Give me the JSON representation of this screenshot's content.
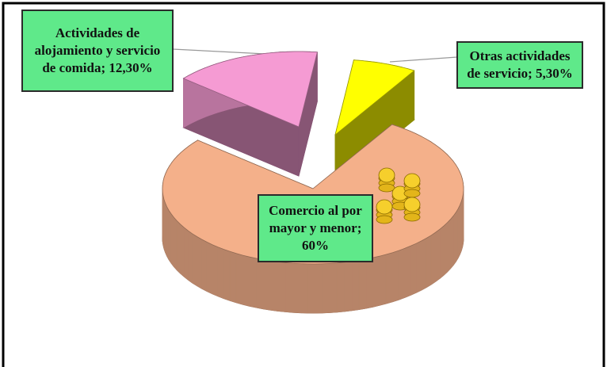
{
  "chart_data": {
    "type": "pie3d",
    "values": [
      12.3,
      5.3,
      60
    ],
    "value_labels": [
      "Actividades de alojamiento y servicio de comida; 12,30%",
      "Otras actividades de servicio; 5,30%",
      "Comercio al por mayor y menor; 60%"
    ],
    "colors": [
      "#f59bd3",
      "#ffff00",
      "#f4b08a"
    ]
  }
}
